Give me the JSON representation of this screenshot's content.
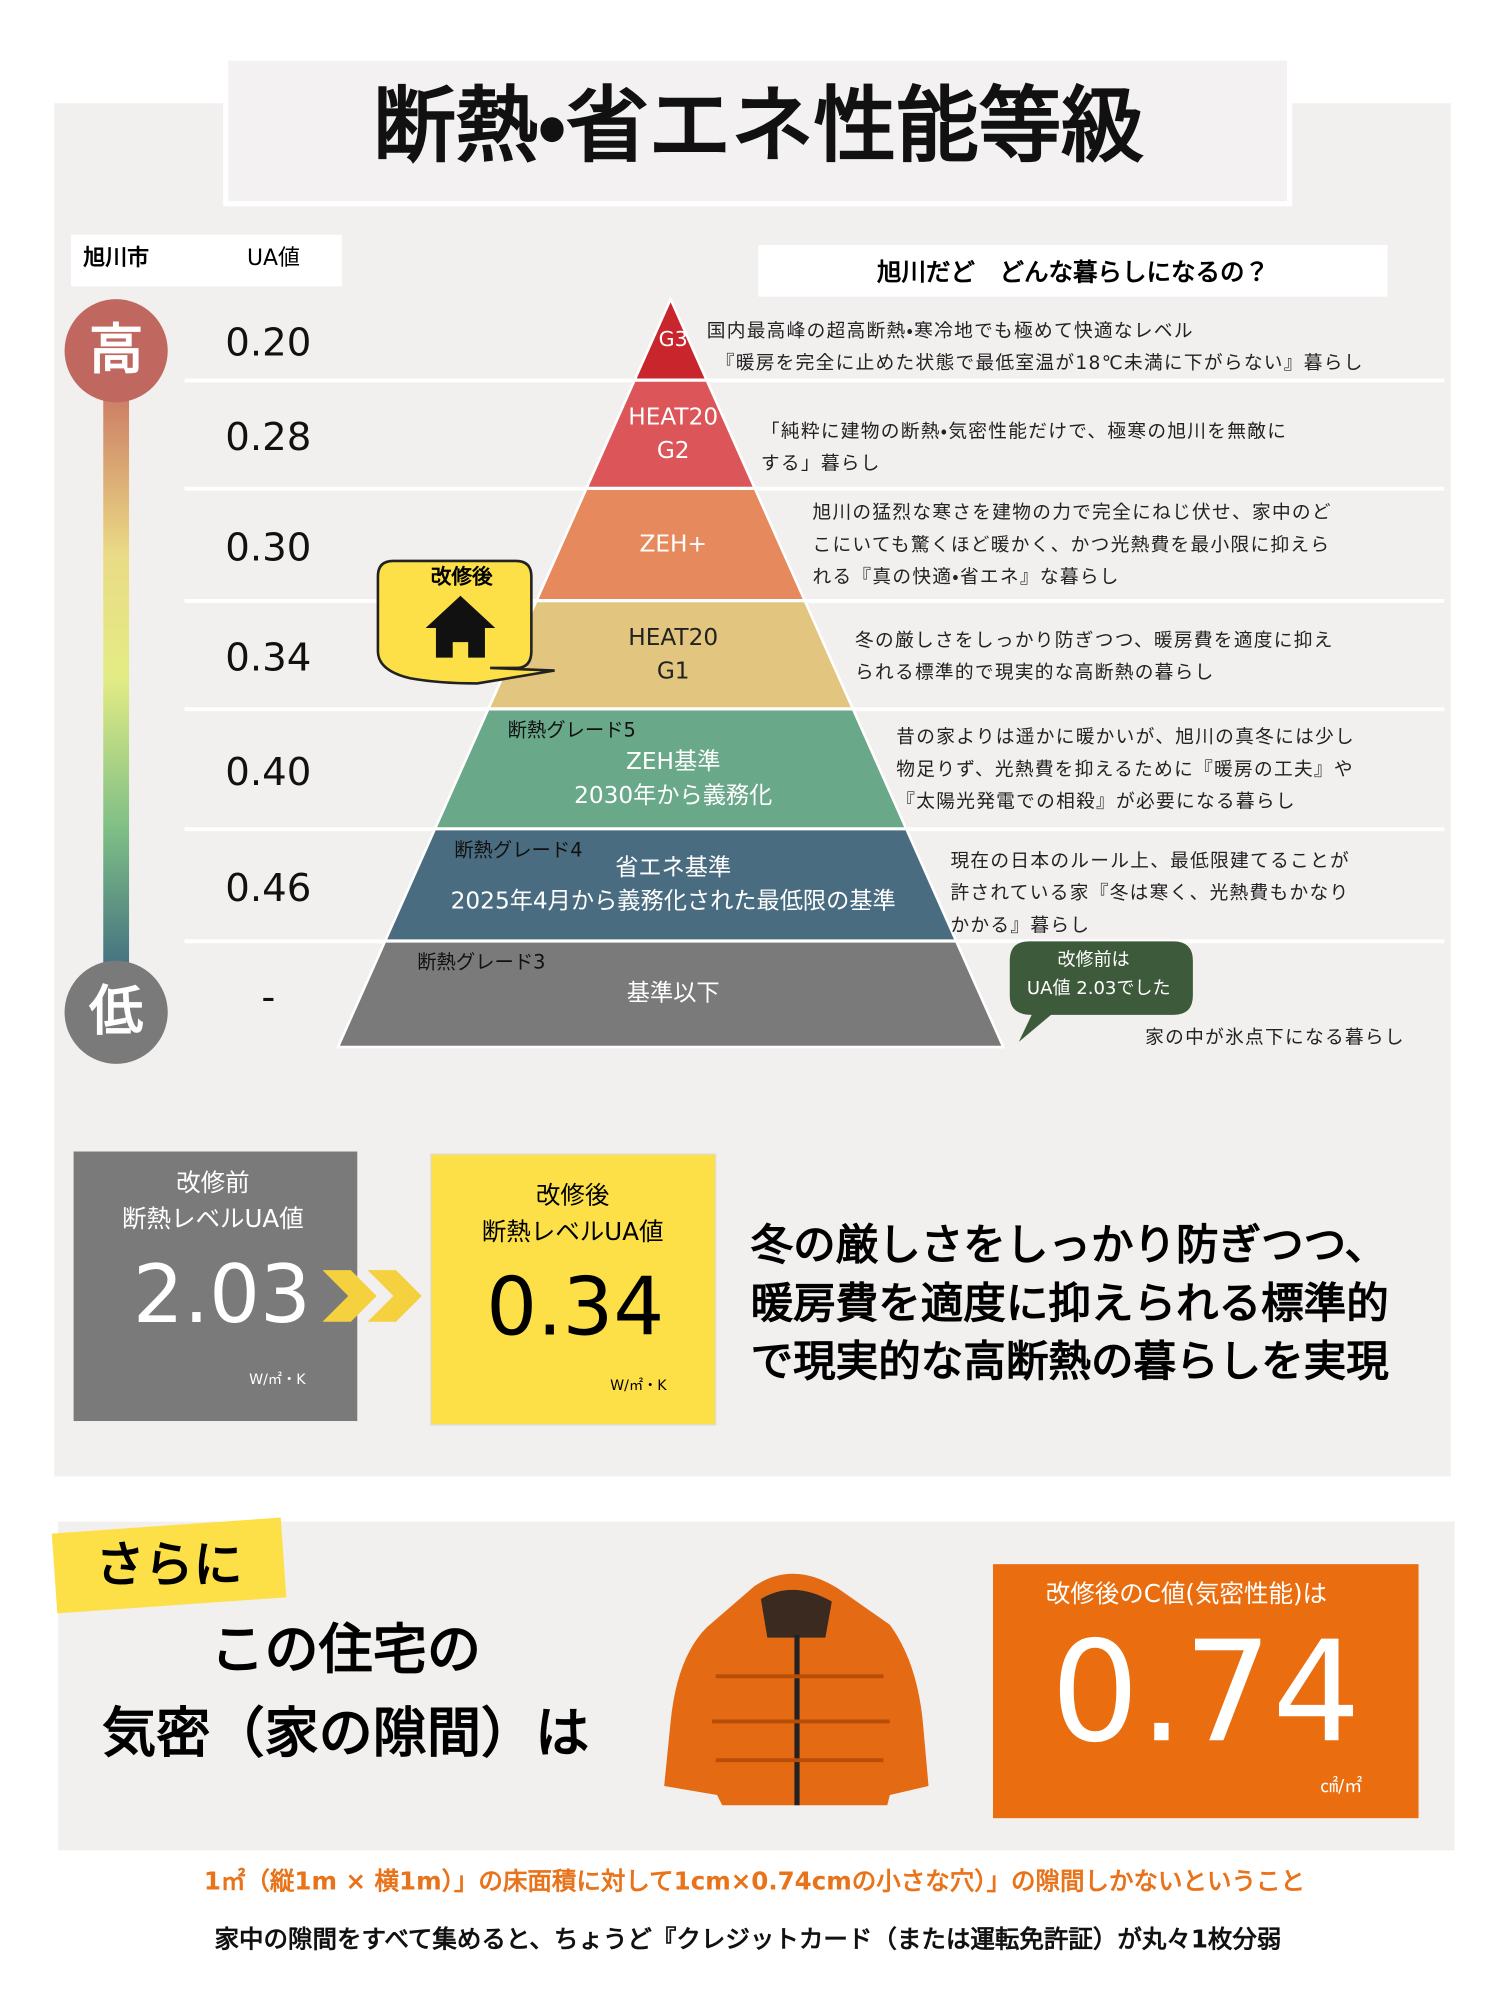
{
  "title": "断熱・省エネ性能等級",
  "header": {
    "city": "旭川市",
    "ua_label": "UA値",
    "question": "旭川だど　どんな暮らしになるの？"
  },
  "scale": {
    "high": "高",
    "low": "低"
  },
  "levels": [
    {
      "ua": "0.20",
      "name": [
        "G3"
      ],
      "desc": [
        "国内最高峰の超高断熱・寒冷地でも極めて快適なレベル",
        "『暖房を完全に止めた状態で最低室温が18℃未満に下がらない』暮らし"
      ]
    },
    {
      "ua": "0.28",
      "name": [
        "HEAT20",
        "G2"
      ],
      "desc": [
        "「純粋に建物の断熱・気密性能だけで、極寒の旭川を無敵に",
        "する」暮らし"
      ]
    },
    {
      "ua": "0.30",
      "name": [
        "ZEH+"
      ],
      "desc": [
        "旭川の猛烈な寒さを建物の力で完全にねじ伏せ、家中のど",
        "こにいても驚くほど暖かく、かつ光熱費を最小限に抑えら",
        "れる『真の快適・省エネ』な暮らし"
      ]
    },
    {
      "ua": "0.34",
      "name": [
        "HEAT20",
        "G1"
      ],
      "desc": [
        "冬の厳しさをしっかり防ぎつつ、暖房費を適度に抑え",
        "られる標準的で現実的な高断熱の暮らし"
      ]
    },
    {
      "ua": "0.40",
      "grade": "断熱グレード5",
      "name": [
        "ZEH基準",
        "2030年から義務化"
      ],
      "desc": [
        "昔の家よりは遥かに暖かいが、旭川の真冬には少し",
        "物足りず、光熱費を抑えるために『暖房の工夫』や",
        "『太陽光発電での相殺』が必要になる暮らし"
      ]
    },
    {
      "ua": "0.46",
      "grade": "断熱グレード4",
      "name": [
        "省エネ基準",
        "2025年4月から義務化された最低限の基準"
      ],
      "desc": [
        "現在の日本のルール上、最低限建てることが",
        "許されている家『冬は寒く、光熱費もかなり",
        "かかる』暮らし"
      ]
    },
    {
      "ua": "-",
      "grade": "断熱グレード3",
      "name": [
        "基準以下"
      ],
      "desc": [
        "家の中が氷点下になる暮らし"
      ]
    }
  ],
  "callouts": {
    "after": "改修後",
    "before": [
      "改修前は",
      "UA値 2.03でした"
    ]
  },
  "comparison": {
    "before": {
      "label": [
        "改修前",
        "断熱レベルUA値"
      ],
      "value": "2.03",
      "unit": "W/㎡・K"
    },
    "after": {
      "label": [
        "改修後",
        "断熱レベルUA値"
      ],
      "value": "0.34",
      "unit": "W/㎡・K"
    },
    "summary": [
      "冬の厳しさをしっかり防ぎつつ、",
      "暖房費を適度に抑えられる標準的",
      "で現実的な高断熱の暮らしを実現"
    ]
  },
  "airtight": {
    "tag": "さらに",
    "heading": [
      "この住宅の",
      "気密（家の隙間）は"
    ],
    "label": "改修後のC値(気密性能)は",
    "value": "0.74",
    "unit": "㎠/㎡"
  },
  "footnotes": [
    "1㎡（縦1m × 横1m）」の床面積に対して1cm×0.74cmの小さな穴）」の隙間しかないということ",
    "家中の隙間をすべて集めると、ちょうど『クレジットカード（または運転免許証）が丸々1枚分弱"
  ]
}
